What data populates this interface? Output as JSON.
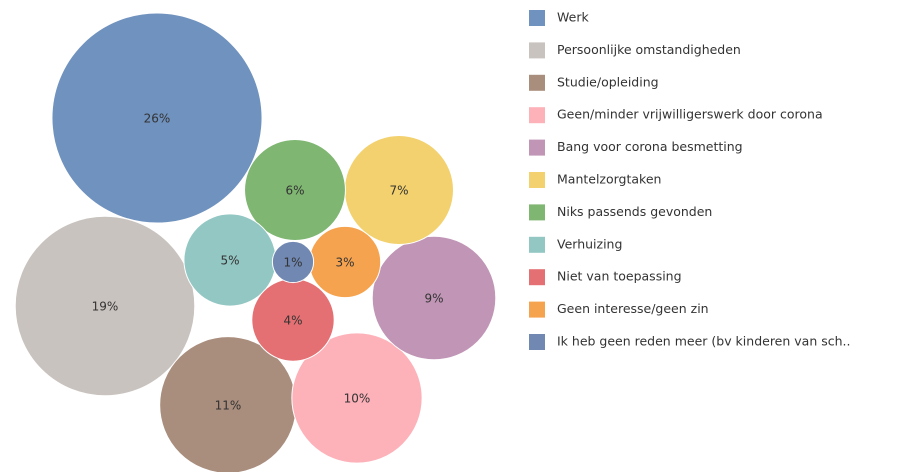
{
  "chart_data": {
    "type": "packed_bubble",
    "categories": [
      "Werk",
      "Persoonlijke omstandigheden",
      "Studie/opleiding",
      "Geen/minder vrijwilligerswerk door corona",
      "Bang voor corona besmetting",
      "Mantelzorgtaken",
      "Niks passends gevonden",
      "Verhuizing",
      "Niet van toepassing",
      "Geen interesse/geen zin",
      "Ik heb geen reden meer (bv kinderen van sch.."
    ],
    "values": [
      26,
      19,
      11,
      10,
      9,
      7,
      6,
      5,
      4,
      3,
      1
    ],
    "value_labels": [
      "26%",
      "19%",
      "11%",
      "10%",
      "9%",
      "7%",
      "6%",
      "5%",
      "4%",
      "3%",
      "1%"
    ],
    "colors": [
      "#7092be",
      "#c9c3bf",
      "#a98d7d",
      "#fdb1b9",
      "#c095b6",
      "#f2d16e",
      "#7fb672",
      "#93c7c3",
      "#e47073",
      "#f5a34f",
      "#7188b3"
    ],
    "legend": "right"
  }
}
